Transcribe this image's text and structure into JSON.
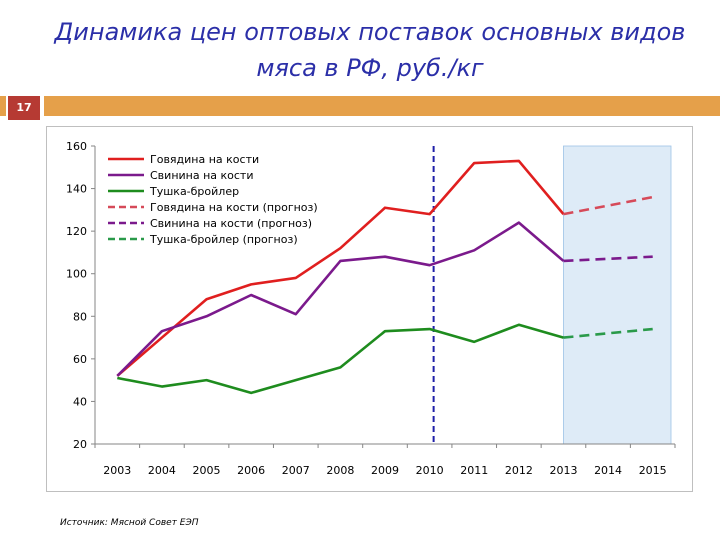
{
  "slide": {
    "title": "Динамика цен оптовых поставок основных видов мяса в РФ, руб./кг",
    "number": "17",
    "source": "Источник: Мясной Совет ЕЭП"
  },
  "colors": {
    "title": "#2b2fa8",
    "accent_bar": "#e5a04a",
    "badge": "#b63a33",
    "forecast_area": "#deebf7"
  },
  "chart_data": {
    "type": "line",
    "categories": [
      "2003",
      "2004",
      "2005",
      "2006",
      "2007",
      "2008",
      "2009",
      "2010",
      "2011",
      "2012",
      "2013",
      "2014",
      "2015"
    ],
    "ylim": [
      20,
      160
    ],
    "yticks": [
      20,
      40,
      60,
      80,
      100,
      120,
      140,
      160
    ],
    "grid": false,
    "legend_position": "top-left",
    "forecast_region": [
      "2013",
      "2015"
    ],
    "divider_at": "2010",
    "series": [
      {
        "name": "Говядина на кости",
        "color": "#e01f1f",
        "dash": "solid",
        "values": [
          52,
          70,
          88,
          95,
          98,
          112,
          131,
          128,
          152,
          153,
          128,
          null,
          null
        ]
      },
      {
        "name": "Свинина на кости",
        "color": "#7b1a8c",
        "dash": "solid",
        "values": [
          52,
          73,
          80,
          90,
          81,
          106,
          108,
          104,
          111,
          124,
          106,
          null,
          null
        ]
      },
      {
        "name": "Тушка-бройлер",
        "color": "#1e8c1e",
        "dash": "solid",
        "values": [
          51,
          47,
          50,
          44,
          50,
          56,
          73,
          74,
          68,
          76,
          70,
          null,
          null
        ]
      },
      {
        "name": "Говядина на кости (прогноз)",
        "color": "#d64a59",
        "dash": "dashed",
        "values": [
          null,
          null,
          null,
          null,
          null,
          null,
          null,
          null,
          null,
          null,
          128,
          132,
          136
        ]
      },
      {
        "name": "Свинина на кости (прогноз)",
        "color": "#7b1a8c",
        "dash": "dashed",
        "values": [
          null,
          null,
          null,
          null,
          null,
          null,
          null,
          null,
          null,
          null,
          106,
          107,
          108
        ]
      },
      {
        "name": "Тушка-бройлер (прогноз)",
        "color": "#2a9a4a",
        "dash": "dashed",
        "values": [
          null,
          null,
          null,
          null,
          null,
          null,
          null,
          null,
          null,
          null,
          70,
          72,
          74
        ]
      }
    ]
  }
}
